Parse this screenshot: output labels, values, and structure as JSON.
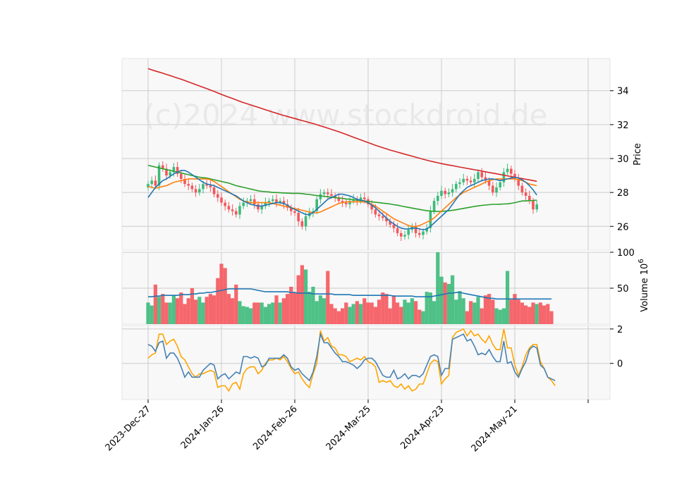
{
  "chart_data": {
    "type": "candlestick",
    "watermark": "(c)2024 www.stockdroid.de",
    "colors": {
      "up": "#3cba7a",
      "down": "#f4575c",
      "sma_short": "#1f77b4",
      "sma_mid": "#ff7f0e",
      "sma_long": "#2ca02c",
      "sma_longest": "#d62728",
      "volume_ma": "#1f77b4",
      "osc_1": "#4682b4",
      "osc_2": "#ffa500",
      "panel_bg": "#f8f8f8",
      "grid": "#cccccc"
    },
    "x_tick_labels": [
      "2023-Dec-27",
      "2024-Jan-26",
      "2024-Feb-26",
      "2024-Mar-25",
      "2024-Apr-23",
      "2024-May-21"
    ],
    "x_tick_index": [
      0,
      20,
      40,
      60,
      80,
      100,
      120
    ],
    "price_panel": {
      "ylabel": "Price",
      "ylim": [
        24.6,
        35.9
      ],
      "yticks": [
        26,
        28,
        30,
        32,
        34
      ],
      "closes": [
        28.5,
        28.7,
        28.4,
        29.6,
        29.4,
        29.0,
        29.2,
        29.5,
        29.1,
        28.8,
        28.5,
        28.4,
        28.2,
        28.0,
        28.2,
        28.5,
        28.4,
        28.3,
        27.9,
        27.7,
        27.4,
        27.2,
        27.0,
        26.9,
        26.7,
        27.2,
        27.4,
        27.5,
        27.6,
        27.3,
        27.0,
        27.2,
        27.4,
        27.5,
        27.6,
        27.4,
        27.5,
        27.3,
        27.1,
        26.9,
        26.8,
        26.3,
        26.0,
        26.6,
        26.8,
        26.9,
        27.6,
        27.9,
        28.0,
        27.9,
        27.8,
        27.7,
        27.5,
        27.4,
        27.3,
        27.5,
        27.6,
        27.5,
        27.7,
        27.6,
        27.3,
        27.0,
        26.7,
        26.6,
        26.5,
        26.3,
        26.1,
        25.9,
        25.6,
        25.4,
        25.5,
        25.8,
        26.0,
        25.6,
        25.5,
        25.7,
        25.9,
        26.9,
        27.5,
        27.8,
        28.1,
        27.9,
        28.0,
        28.2,
        28.5,
        28.6,
        28.8,
        28.7,
        28.6,
        28.8,
        29.2,
        28.9,
        28.7,
        28.4,
        28.0,
        28.3,
        28.6,
        29.2,
        29.4,
        29.1,
        28.8,
        28.4,
        28.0,
        27.8,
        27.5,
        27.0,
        27.3
      ],
      "sma_short": [
        27.7,
        28.0,
        28.3,
        28.5,
        28.7,
        28.8,
        28.95,
        29.1,
        29.2,
        29.3,
        29.3,
        29.2,
        29.05,
        28.9,
        28.75,
        28.6,
        28.5,
        28.45,
        28.4,
        28.3,
        28.2,
        28.1,
        28.0,
        27.9,
        27.8,
        27.65,
        27.5,
        27.4,
        27.3,
        27.25,
        27.2,
        27.2,
        27.25,
        27.3,
        27.35,
        27.4,
        27.4,
        27.35,
        27.25,
        27.1,
        27.0,
        26.9,
        26.8,
        26.7,
        26.7,
        26.8,
        27.0,
        27.2,
        27.4,
        27.6,
        27.7,
        27.8,
        27.9,
        27.9,
        27.85,
        27.8,
        27.7,
        27.6,
        27.55,
        27.5,
        27.4,
        27.25,
        27.1,
        26.9,
        26.7,
        26.5,
        26.3,
        26.15,
        26.0,
        25.9,
        25.85,
        25.85,
        25.9,
        25.9,
        25.85,
        25.8,
        25.85,
        26.0,
        26.2,
        26.4,
        26.6,
        26.8,
        27.0,
        27.3,
        27.6,
        27.9,
        28.1,
        28.3,
        28.4,
        28.5,
        28.6,
        28.7,
        28.75,
        28.8,
        28.8,
        28.75,
        28.7,
        28.75,
        28.8,
        28.85,
        28.9,
        28.85,
        28.75,
        28.6,
        28.4,
        28.15,
        27.85
      ],
      "sma_mid": [
        28.35,
        28.3,
        28.25,
        28.3,
        28.35,
        28.4,
        28.5,
        28.6,
        28.65,
        28.7,
        28.75,
        28.8,
        28.8,
        28.8,
        28.8,
        28.8,
        28.8,
        28.75,
        28.65,
        28.5,
        28.35,
        28.2,
        28.05,
        27.9,
        27.75,
        27.6,
        27.5,
        27.45,
        27.4,
        27.4,
        27.4,
        27.4,
        27.4,
        27.4,
        27.35,
        27.3,
        27.25,
        27.2,
        27.15,
        27.1,
        27.05,
        27.0,
        26.95,
        26.9,
        26.85,
        26.8,
        26.8,
        26.85,
        26.95,
        27.05,
        27.15,
        27.25,
        27.35,
        27.4,
        27.45,
        27.45,
        27.45,
        27.45,
        27.45,
        27.45,
        27.4,
        27.3,
        27.2,
        27.05,
        26.9,
        26.75,
        26.6,
        26.45,
        26.35,
        26.25,
        26.15,
        26.05,
        26.0,
        26.0,
        26.05,
        26.15,
        26.25,
        26.35,
        26.5,
        26.7,
        26.9,
        27.1,
        27.3,
        27.5,
        27.7,
        27.85,
        28.0,
        28.1,
        28.2,
        28.3,
        28.4,
        28.5,
        28.6,
        28.7,
        28.75,
        28.8,
        28.8,
        28.8,
        28.8,
        28.8,
        28.8,
        28.75,
        28.7,
        28.6,
        28.5,
        28.45,
        28.4
      ],
      "sma_long": [
        29.6,
        29.55,
        29.5,
        29.45,
        29.4,
        29.35,
        29.3,
        29.25,
        29.2,
        29.15,
        29.1,
        29.05,
        29.0,
        28.95,
        28.9,
        28.87,
        28.85,
        28.8,
        28.75,
        28.7,
        28.65,
        28.6,
        28.55,
        28.48,
        28.4,
        28.35,
        28.3,
        28.25,
        28.2,
        28.15,
        28.1,
        28.07,
        28.05,
        28.03,
        28.0,
        28.0,
        27.98,
        27.97,
        27.96,
        27.95,
        27.95,
        27.95,
        27.93,
        27.9,
        27.88,
        27.85,
        27.82,
        27.8,
        27.77,
        27.75,
        27.72,
        27.7,
        27.67,
        27.65,
        27.62,
        27.6,
        27.57,
        27.55,
        27.52,
        27.5,
        27.47,
        27.45,
        27.42,
        27.4,
        27.37,
        27.35,
        27.32,
        27.28,
        27.25,
        27.2,
        27.16,
        27.12,
        27.08,
        27.04,
        27.0,
        26.96,
        26.93,
        26.9,
        26.88,
        26.88,
        26.88,
        26.9,
        26.92,
        26.95,
        26.98,
        27.02,
        27.06,
        27.1,
        27.14,
        27.18,
        27.21,
        27.24,
        27.26,
        27.28,
        27.3,
        27.3,
        27.31,
        27.32,
        27.33,
        27.36,
        27.4,
        27.45,
        27.5,
        27.5,
        27.52,
        27.53,
        27.55
      ],
      "sma_longest": [
        35.3,
        35.23,
        35.16,
        35.1,
        35.03,
        34.96,
        34.89,
        34.82,
        34.75,
        34.68,
        34.6,
        34.52,
        34.44,
        34.36,
        34.28,
        34.2,
        34.12,
        34.04,
        33.96,
        33.87,
        33.78,
        33.7,
        33.62,
        33.54,
        33.46,
        33.38,
        33.3,
        33.23,
        33.16,
        33.09,
        33.02,
        32.95,
        32.88,
        32.81,
        32.74,
        32.67,
        32.6,
        32.54,
        32.48,
        32.42,
        32.36,
        32.3,
        32.24,
        32.18,
        32.12,
        32.06,
        32.0,
        31.93,
        31.86,
        31.79,
        31.72,
        31.65,
        31.58,
        31.5,
        31.42,
        31.34,
        31.26,
        31.18,
        31.1,
        31.02,
        30.94,
        30.86,
        30.78,
        30.71,
        30.64,
        30.57,
        30.5,
        30.44,
        30.38,
        30.32,
        30.26,
        30.2,
        30.14,
        30.08,
        30.02,
        29.96,
        29.9,
        29.85,
        29.8,
        29.75,
        29.7,
        29.66,
        29.62,
        29.58,
        29.54,
        29.5,
        29.46,
        29.42,
        29.38,
        29.34,
        29.3,
        29.26,
        29.22,
        29.18,
        29.14,
        29.1,
        29.06,
        29.02,
        28.98,
        28.94,
        28.9,
        28.86,
        28.82,
        28.78,
        28.74,
        28.7,
        28.66
      ]
    },
    "volume_panel": {
      "ylabel": "Volume  10^6",
      "ylabel_main": "Volume",
      "ylabel_exp": "10",
      "ylabel_sup": "6",
      "ylim": [
        0,
        100
      ],
      "yticks": [
        50,
        100
      ],
      "values": [
        30,
        26,
        55,
        38,
        42,
        30,
        30,
        40,
        36,
        44,
        28,
        36,
        50,
        34,
        38,
        30,
        38,
        42,
        40,
        64,
        84,
        78,
        42,
        36,
        55,
        32,
        25,
        24,
        22,
        30,
        30,
        30,
        24,
        28,
        30,
        40,
        30,
        36,
        42,
        52,
        44,
        68,
        82,
        76,
        45,
        52,
        32,
        40,
        36,
        74,
        28,
        22,
        18,
        22,
        30,
        24,
        28,
        32,
        28,
        36,
        30,
        30,
        24,
        34,
        44,
        42,
        22,
        40,
        30,
        24,
        34,
        30,
        36,
        32,
        20,
        18,
        45,
        44,
        32,
        100,
        66,
        58,
        56,
        68,
        34,
        46,
        36,
        18,
        32,
        30,
        38,
        22,
        40,
        42,
        34,
        22,
        20,
        22,
        74,
        34,
        42,
        34,
        30,
        26,
        24,
        30,
        28,
        30,
        26,
        28,
        18
      ],
      "moving_avg": [
        38,
        38,
        39,
        39,
        40,
        40,
        40,
        40,
        40,
        41,
        41,
        41,
        42,
        42,
        43,
        43,
        44,
        44,
        45,
        46,
        47,
        48,
        49,
        49,
        49,
        49,
        49,
        49,
        49,
        48,
        47,
        46,
        45,
        45,
        45,
        45,
        45,
        45,
        45,
        44,
        44,
        43,
        43,
        43,
        43,
        42,
        42,
        42,
        42,
        42,
        42,
        41,
        41,
        41,
        41,
        41,
        40,
        40,
        40,
        40,
        40,
        40,
        40,
        40,
        40,
        40,
        40,
        39,
        39,
        39,
        39,
        39,
        39,
        38,
        38,
        38,
        38,
        38,
        39,
        40,
        41,
        42,
        43,
        43,
        44,
        44,
        43,
        42,
        41,
        40,
        39,
        38,
        37,
        36,
        36,
        35,
        35,
        35,
        35,
        35,
        35,
        35,
        35,
        35,
        35,
        35,
        35,
        35,
        35,
        35,
        35
      ]
    },
    "osc_panel": {
      "ylim": [
        -2.1,
        2.2
      ],
      "yticks": [
        0,
        2
      ],
      "series_1": [
        1.1,
        1.0,
        0.7,
        1.2,
        1.3,
        0.3,
        0.6,
        0.6,
        0.3,
        -0.2,
        -0.8,
        -0.5,
        -0.8,
        -0.8,
        -0.8,
        -0.4,
        -0.2,
        0.0,
        -0.1,
        -0.9,
        -0.7,
        -0.6,
        -0.9,
        -0.7,
        -0.5,
        -0.6,
        0.4,
        0.4,
        0.3,
        0.4,
        0.3,
        -0.2,
        -0.1,
        0.3,
        0.3,
        0.3,
        0.3,
        0.5,
        0.3,
        -0.2,
        -0.4,
        -0.3,
        -0.6,
        -0.8,
        -1.0,
        -0.5,
        0.4,
        1.7,
        1.2,
        1.2,
        0.9,
        0.6,
        0.4,
        0.1,
        0.1,
        0.0,
        -0.1,
        -0.3,
        -0.1,
        0.2,
        0.3,
        0.3,
        0.1,
        -0.3,
        -0.7,
        -0.8,
        -0.8,
        -0.4,
        -0.9,
        -0.8,
        -0.6,
        -0.9,
        -0.7,
        -0.7,
        -0.8,
        -0.6,
        -0.1,
        0.4,
        0.5,
        0.4,
        -0.7,
        -0.3,
        -0.3,
        1.4,
        1.5,
        1.6,
        1.7,
        1.3,
        1.4,
        1.0,
        0.5,
        0.6,
        0.5,
        0.8,
        0.4,
        0.1,
        0.1,
        1.3,
        0.0,
        0.1,
        -0.5,
        -0.8,
        -0.3,
        0.1,
        0.8,
        1.0,
        0.9,
        -0.1,
        -0.3,
        -0.8,
        -0.9,
        -1.0
      ],
      "series_2": [
        0.3,
        0.5,
        0.6,
        1.7,
        1.7,
        1.1,
        1.3,
        1.4,
        1.0,
        0.4,
        0.2,
        -0.2,
        -0.6,
        -0.8,
        -0.6,
        -0.6,
        -0.5,
        -0.4,
        -0.5,
        -1.4,
        -1.3,
        -1.3,
        -1.6,
        -1.2,
        -1.1,
        -1.5,
        -0.6,
        -0.3,
        -0.2,
        -0.2,
        -0.6,
        -0.4,
        0.0,
        0.2,
        0.2,
        0.3,
        0.2,
        0.4,
        0.1,
        -0.3,
        -0.6,
        -0.5,
        -0.9,
        -1.2,
        -1.4,
        -0.6,
        0.0,
        1.9,
        1.3,
        1.5,
        1.0,
        0.9,
        0.5,
        0.5,
        0.4,
        0.1,
        0.2,
        0.3,
        0.2,
        0.4,
        0.1,
        0.0,
        -0.2,
        -1.1,
        -1.0,
        -1.1,
        -1.0,
        -1.3,
        -1.4,
        -1.2,
        -1.5,
        -1.3,
        -1.6,
        -1.5,
        -1.2,
        -1.2,
        -0.6,
        0.0,
        0.2,
        0.1,
        -1.2,
        -0.9,
        -0.7,
        1.5,
        1.8,
        1.9,
        2.0,
        1.6,
        1.9,
        1.6,
        1.7,
        1.4,
        1.2,
        1.6,
        1.1,
        0.8,
        0.8,
        2.0,
        0.9,
        0.9,
        -0.1,
        -0.7,
        -0.2,
        0.5,
        0.9,
        1.1,
        1.1,
        0.1,
        -0.3,
        -0.8,
        -1.0,
        -1.3
      ]
    }
  }
}
